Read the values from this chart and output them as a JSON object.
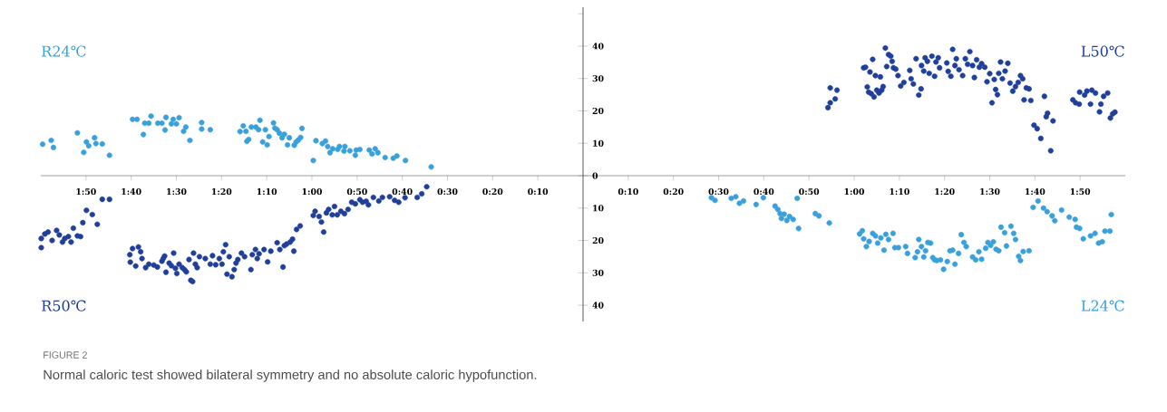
{
  "chart_data": [
    {
      "type": "scatter",
      "marker": "circle",
      "tick_labels": "x",
      "xlim": [
        120,
        0
      ],
      "ylim": [
        -45,
        52
      ],
      "xticks": [
        {
          "value": 110,
          "label": "1:50"
        },
        {
          "value": 100,
          "label": "1:40"
        },
        {
          "value": 90,
          "label": "1:30"
        },
        {
          "value": 80,
          "label": "1:20"
        },
        {
          "value": 70,
          "label": "1:10"
        },
        {
          "value": 60,
          "label": "1:00"
        },
        {
          "value": 50,
          "label": "0:50"
        },
        {
          "value": 40,
          "label": "0:40"
        },
        {
          "value": 30,
          "label": "0:30"
        },
        {
          "value": 20,
          "label": "0:20"
        },
        {
          "value": 10,
          "label": "0:10"
        }
      ],
      "annotations": [
        "FIGURE 2",
        "Normal caloric test showed bilateral symmetry and no absolute caloric hypofunction."
      ],
      "series": [
        {
          "name": "R24℃",
          "color": "#3aa0dc",
          "x": [
            119.6,
            117.7,
            117.2,
            111.9,
            110.5,
            109.9,
            109.4,
            108.1,
            107.8,
            106.4,
            104.8,
            99.7,
            98.7,
            97.3,
            97.0,
            96.1,
            95.6,
            94.1,
            93.2,
            92.5,
            92.3,
            91.1,
            90.7,
            90.0,
            89.4,
            88.4,
            87.9,
            87.0,
            84.4,
            84.4,
            82.5,
            75.9,
            75.2,
            74.6,
            74.4,
            74.0,
            73.4,
            72.4,
            71.8,
            71.5,
            70.9,
            70.3,
            69.9,
            69.5,
            68.5,
            68.2,
            67.7,
            67.2,
            66.6,
            66.1,
            65.4,
            65.0,
            63.9,
            63.5,
            63.0,
            62.5,
            62.2,
            59.7,
            59.1,
            57.7,
            57.0,
            56.5,
            56.0,
            55.4,
            54.3,
            53.9,
            52.9,
            52.7,
            51.6,
            50.4,
            50.2,
            49.4,
            47.3,
            46.7,
            46.0,
            45.4,
            43.8,
            42.0,
            41.2,
            39.3,
            33.6
          ],
          "values": [
            9.7,
            10.9,
            8.7,
            13.2,
            7.2,
            10.4,
            9.2,
            11.7,
            9.9,
            9.8,
            6.3,
            17.4,
            17.4,
            12.7,
            16.2,
            16.2,
            18.4,
            16.2,
            16.2,
            14.1,
            18.0,
            16.0,
            17.4,
            16.0,
            17.9,
            13.7,
            15.0,
            10.9,
            16.4,
            14.4,
            14.2,
            13.6,
            15.4,
            13.7,
            10.6,
            11.2,
            15.0,
            15.0,
            14.2,
            17.1,
            10.4,
            14.2,
            9.5,
            12.1,
            16.3,
            14.7,
            14.2,
            13.1,
            11.7,
            12.8,
            9.5,
            11.7,
            9.4,
            10.4,
            11.0,
            11.8,
            14.6,
            4.7,
            10.8,
            9.9,
            10.7,
            9.0,
            7.1,
            8.3,
            8.1,
            9.0,
            7.6,
            9.0,
            7.7,
            6.3,
            7.9,
            8.1,
            7.9,
            6.7,
            8.3,
            7.1,
            5.6,
            5.4,
            6.1,
            4.7,
            2.7
          ]
        },
        {
          "name": "R50℃",
          "color": "#1f3f9a",
          "x": [
            119.9,
            119.9,
            119.1,
            118.4,
            117.5,
            116.5,
            115.9,
            115.2,
            114.7,
            113.9,
            113.3,
            112.8,
            111.9,
            111.2,
            110.7,
            109.9,
            108.6,
            107.5,
            106.4,
            104.8,
            100.3,
            100.2,
            99.7,
            99.0,
            98.4,
            97.9,
            97.6,
            96.8,
            96.1,
            95.0,
            94.2,
            93.2,
            92.9,
            92.6,
            92.3,
            91.6,
            91.1,
            90.6,
            90.2,
            89.9,
            89.4,
            88.7,
            88.2,
            87.8,
            87.2,
            86.8,
            86.4,
            86.2,
            85.8,
            85.4,
            84.9,
            83.6,
            82.5,
            82.0,
            81.3,
            80.5,
            79.9,
            79.6,
            79.1,
            78.8,
            78.3,
            77.7,
            77.2,
            76.8,
            76.4,
            75.6,
            74.9,
            73.5,
            73.2,
            72.5,
            72.1,
            71.7,
            70.6,
            69.8,
            69.1,
            67.7,
            67.1,
            66.4,
            66.1,
            65.6,
            64.8,
            64.3,
            64.0,
            63.4,
            62.6,
            59.7,
            59.3,
            58.4,
            57.9,
            57.4,
            56.8,
            56.3,
            55.5,
            55.0,
            54.4,
            53.6,
            52.8,
            52.0,
            51.2,
            50.4,
            49.4,
            48.8,
            48.0,
            47.5,
            46.4,
            45.2,
            44.4,
            42.8,
            41.7,
            40.8,
            39.4,
            36.7,
            35.7,
            34.6
          ],
          "values": [
            -22.2,
            -19.4,
            -18.0,
            -17.4,
            -20.0,
            -16.9,
            -18.3,
            -20.5,
            -19.4,
            -18.8,
            -20.5,
            -16.2,
            -18.6,
            -18.8,
            -14.5,
            -10.7,
            -12.0,
            -15.0,
            -7.3,
            -7.3,
            -24.4,
            -26.7,
            -22.5,
            -27.9,
            -22.0,
            -23.5,
            -25.6,
            -28.4,
            -27.3,
            -27.6,
            -28.2,
            -26.4,
            -25.6,
            -24.8,
            -29.8,
            -27.0,
            -27.8,
            -23.9,
            -28.6,
            -30.2,
            -27.3,
            -28.4,
            -29.0,
            -29.7,
            -25.9,
            -32.3,
            -32.7,
            -23.9,
            -27.3,
            -28.4,
            -25.0,
            -25.6,
            -27.3,
            -24.7,
            -27.5,
            -25.6,
            -27.3,
            -23.5,
            -21.3,
            -30.4,
            -25.0,
            -31.2,
            -29.0,
            -27.0,
            -25.9,
            -23.9,
            -25.0,
            -29.0,
            -24.4,
            -22.8,
            -25.6,
            -24.1,
            -22.8,
            -26.6,
            -23.3,
            -20.7,
            -22.8,
            -28.2,
            -21.6,
            -21.1,
            -20.5,
            -19.6,
            -23.3,
            -16.6,
            -15.5,
            -12.3,
            -11.0,
            -12.6,
            -14.3,
            -17.4,
            -11.5,
            -10.4,
            -12.1,
            -9.5,
            -12.1,
            -11.0,
            -11.7,
            -10.4,
            -8.2,
            -8.7,
            -7.4,
            -8.2,
            -7.9,
            -9.0,
            -6.7,
            -7.8,
            -6.7,
            -6.5,
            -7.6,
            -8.2,
            -6.8,
            -6.7,
            -5.6,
            -3.4
          ]
        }
      ]
    },
    {
      "type": "scatter",
      "marker": "circle",
      "xlim": [
        0,
        120
      ],
      "ylim": [
        -45,
        52
      ],
      "xticks": [
        {
          "value": 10,
          "label": "0:10"
        },
        {
          "value": 20,
          "label": "0:20"
        },
        {
          "value": 30,
          "label": "0:30"
        },
        {
          "value": 40,
          "label": "0:40"
        },
        {
          "value": 50,
          "label": "0:50"
        },
        {
          "value": 60,
          "label": "1:00"
        },
        {
          "value": 70,
          "label": "1:10"
        },
        {
          "value": 80,
          "label": "1:20"
        },
        {
          "value": 90,
          "label": "1:30"
        },
        {
          "value": 100,
          "label": "1:40"
        },
        {
          "value": 110,
          "label": "1:50"
        }
      ],
      "yticks": [
        40,
        30,
        20,
        10,
        0,
        {
          "value": -10,
          "label": "10"
        },
        {
          "value": -20,
          "label": "20"
        },
        {
          "value": -30,
          "label": "30"
        },
        {
          "value": -40,
          "label": "40"
        }
      ],
      "series": [
        {
          "name": "L50℃",
          "color": "#1f3f9a",
          "x": [
            54.2,
            54.7,
            54.7,
            55.8,
            56.2,
            62.1,
            62.5,
            62.9,
            63.2,
            63.5,
            63.8,
            64.1,
            64.4,
            64.7,
            65.0,
            65.5,
            65.8,
            66.1,
            66.4,
            66.9,
            67.2,
            67.6,
            68.1,
            68.4,
            68.7,
            69.2,
            69.7,
            70.3,
            71.0,
            72.3,
            72.6,
            73.1,
            73.7,
            74.3,
            74.8,
            74.9,
            75.4,
            75.7,
            76.2,
            76.6,
            77.2,
            77.8,
            78.1,
            78.6,
            78.9,
            80.5,
            80.8,
            81.4,
            81.8,
            82.3,
            82.6,
            83.2,
            84.0,
            84.6,
            85.1,
            85.6,
            86.2,
            86.6,
            87.1,
            87.7,
            88.2,
            88.9,
            89.4,
            90.0,
            90.5,
            91.0,
            91.3,
            91.7,
            92.0,
            92.4,
            92.8,
            93.4,
            94.0,
            94.5,
            95.1,
            95.7,
            96.3,
            96.8,
            97.3,
            97.6,
            98.1,
            98.7,
            99.1,
            99.8,
            100.5,
            101.3,
            102.1,
            102.5,
            102.8,
            103.5,
            104.0,
            108.4,
            109.0,
            109.8,
            109.9,
            111.0,
            111.5,
            112.3,
            112.6,
            113.4,
            114.3,
            114.6,
            115.2,
            116.1,
            116.7,
            117.2,
            117.7
          ],
          "values": [
            21.0,
            22.5,
            27.1,
            23.7,
            26.4,
            33.3,
            33.5,
            27.4,
            25.8,
            32.0,
            25.3,
            35.9,
            24.3,
            30.9,
            26.4,
            25.5,
            30.5,
            26.4,
            27.5,
            39.4,
            33.7,
            37.4,
            36.9,
            35.3,
            33.3,
            32.9,
            30.9,
            27.7,
            28.8,
            32.5,
            29.9,
            28.3,
            36.1,
            24.9,
            26.8,
            34.0,
            32.3,
            36.4,
            35.3,
            31.6,
            36.9,
            30.7,
            35.1,
            36.4,
            33.3,
            34.8,
            32.2,
            30.7,
            39.0,
            34.0,
            36.1,
            32.7,
            30.9,
            36.1,
            34.4,
            38.3,
            34.0,
            30.3,
            35.8,
            33.5,
            34.6,
            33.5,
            29.0,
            31.5,
            22.5,
            29.7,
            26.6,
            25.0,
            31.6,
            35.1,
            29.9,
            32.3,
            34.7,
            28.6,
            26.1,
            27.5,
            28.8,
            30.9,
            29.9,
            23.4,
            27.1,
            26.8,
            23.2,
            15.6,
            14.5,
            11.5,
            24.5,
            18.2,
            19.3,
            7.7,
            16.9,
            23.4,
            22.5,
            22.1,
            25.8,
            24.9,
            26.1,
            22.1,
            26.4,
            25.5,
            19.7,
            22.1,
            24.5,
            25.5,
            17.8,
            19.1,
            19.6
          ]
        },
        {
          "name": "L24℃",
          "color": "#3aa0dc",
          "x": [
            28.4,
            29.2,
            32.8,
            33.8,
            34.6,
            35.5,
            38.3,
            39.9,
            42.5,
            43.1,
            43.6,
            43.9,
            44.5,
            45.1,
            45.7,
            46.5,
            47.4,
            47.7,
            51.4,
            52.2,
            54.5,
            61.2,
            61.8,
            62.1,
            62.7,
            63.3,
            64.1,
            64.7,
            65.2,
            65.9,
            66.6,
            67.0,
            67.6,
            68.6,
            69.0,
            69.8,
            71.4,
            71.8,
            73.5,
            74.0,
            74.3,
            74.9,
            75.4,
            75.8,
            76.3,
            76.9,
            77.4,
            77.8,
            78.3,
            79.1,
            79.8,
            80.6,
            81.2,
            81.8,
            82.3,
            83.1,
            83.7,
            84.3,
            84.8,
            86.2,
            86.9,
            87.6,
            88.2,
            89.1,
            89.6,
            90.2,
            90.8,
            91.4,
            92.0,
            92.5,
            93.3,
            93.7,
            94.7,
            95.3,
            95.7,
            96.4,
            96.8,
            97.4,
            98.7,
            99.6,
            100.7,
            101.9,
            102.7,
            103.8,
            104.4,
            105.9,
            107.6,
            108.9,
            109.2,
            109.9,
            110.7,
            112.3,
            113.3,
            114.1,
            114.9,
            115.5,
            116.6,
            116.9
          ],
          "values": [
            -6.8,
            -7.6,
            -7.0,
            -6.5,
            -8.5,
            -7.8,
            -8.9,
            -6.8,
            -9.4,
            -10.4,
            -11.7,
            -13.2,
            -11.9,
            -13.8,
            -12.6,
            -13.5,
            -7.0,
            -16.3,
            -11.7,
            -12.4,
            -14.6,
            -18.0,
            -17.0,
            -19.5,
            -21.9,
            -20.3,
            -17.8,
            -18.6,
            -20.8,
            -19.2,
            -23.0,
            -18.1,
            -19.7,
            -17.8,
            -22.2,
            -22.2,
            -21.9,
            -24.0,
            -25.3,
            -23.5,
            -19.7,
            -21.9,
            -25.1,
            -23.2,
            -20.6,
            -20.8,
            -25.3,
            -26.0,
            -26.2,
            -26.0,
            -28.9,
            -26.5,
            -23.2,
            -23.0,
            -27.3,
            -24.0,
            -18.2,
            -20.6,
            -21.9,
            -25.1,
            -26.0,
            -23.5,
            -25.8,
            -22.4,
            -20.6,
            -21.5,
            -20.4,
            -22.7,
            -23.2,
            -15.9,
            -17.6,
            -21.7,
            -15.6,
            -17.8,
            -19.7,
            -24.9,
            -26.2,
            -23.4,
            -23.2,
            -9.8,
            -7.8,
            -10.0,
            -11.1,
            -12.4,
            -13.9,
            -10.6,
            -12.8,
            -13.5,
            -15.9,
            -16.3,
            -19.5,
            -18.6,
            -17.8,
            -20.8,
            -20.4,
            -17.1,
            -17.1,
            -12.0
          ]
        }
      ]
    }
  ]
}
